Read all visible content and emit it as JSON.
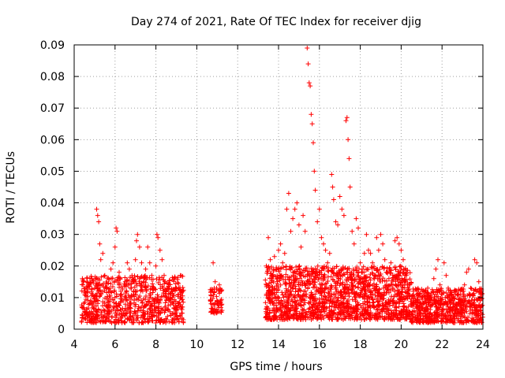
{
  "chart_data": {
    "type": "scatter",
    "title": "Day 274 of 2021, Rate Of TEC Index for receiver djig",
    "xlabel": "GPS time / hours",
    "ylabel": "ROTI / TECUs",
    "xlim": [
      4,
      24
    ],
    "ylim": [
      0,
      0.09
    ],
    "xticks": [
      "4",
      "6",
      "8",
      "10",
      "12",
      "14",
      "16",
      "18",
      "20",
      "22",
      "24"
    ],
    "yticks": [
      "0",
      "0.01",
      "0.02",
      "0.03",
      "0.04",
      "0.05",
      "0.06",
      "0.07",
      "0.08",
      "0.09"
    ],
    "grid": true,
    "marker": "plus",
    "marker_color": "#ff0000",
    "series": [
      {
        "name": "ROTI",
        "points": [
          [
            4.4,
            0.016
          ],
          [
            4.5,
            0.012
          ],
          [
            4.6,
            0.005
          ],
          [
            4.7,
            0.014
          ],
          [
            4.8,
            0.009
          ],
          [
            4.9,
            0.011
          ],
          [
            5.0,
            0.013
          ],
          [
            5.05,
            0.006
          ],
          [
            5.1,
            0.038
          ],
          [
            5.15,
            0.036
          ],
          [
            5.2,
            0.034
          ],
          [
            5.25,
            0.027
          ],
          [
            5.3,
            0.022
          ],
          [
            5.4,
            0.024
          ],
          [
            5.5,
            0.017
          ],
          [
            5.6,
            0.013
          ],
          [
            5.7,
            0.004
          ],
          [
            5.8,
            0.019
          ],
          [
            5.9,
            0.021
          ],
          [
            6.0,
            0.026
          ],
          [
            6.05,
            0.032
          ],
          [
            6.1,
            0.031
          ],
          [
            6.2,
            0.018
          ],
          [
            6.3,
            0.011
          ],
          [
            6.4,
            0.009
          ],
          [
            6.5,
            0.015
          ],
          [
            6.6,
            0.021
          ],
          [
            6.7,
            0.019
          ],
          [
            6.8,
            0.013
          ],
          [
            6.9,
            0.012
          ],
          [
            7.0,
            0.022
          ],
          [
            7.05,
            0.028
          ],
          [
            7.1,
            0.03
          ],
          [
            7.2,
            0.026
          ],
          [
            7.3,
            0.021
          ],
          [
            7.4,
            0.015
          ],
          [
            7.5,
            0.019
          ],
          [
            7.6,
            0.026
          ],
          [
            7.7,
            0.021
          ],
          [
            7.8,
            0.017
          ],
          [
            7.9,
            0.013
          ],
          [
            8.0,
            0.02
          ],
          [
            8.05,
            0.03
          ],
          [
            8.1,
            0.029
          ],
          [
            8.2,
            0.025
          ],
          [
            8.3,
            0.022
          ],
          [
            8.4,
            0.017
          ],
          [
            8.5,
            0.01
          ],
          [
            8.6,
            0.006
          ],
          [
            8.9,
            0.016
          ],
          [
            9.0,
            0.013
          ],
          [
            9.1,
            0.011
          ],
          [
            9.2,
            0.017
          ],
          [
            9.3,
            0.007
          ],
          [
            10.7,
            0.012
          ],
          [
            10.8,
            0.021
          ],
          [
            10.9,
            0.015
          ],
          [
            11.0,
            0.008
          ],
          [
            11.1,
            0.014
          ],
          [
            11.2,
            0.012
          ],
          [
            13.4,
            0.02
          ],
          [
            13.5,
            0.029
          ],
          [
            13.6,
            0.022
          ],
          [
            13.7,
            0.017
          ],
          [
            13.8,
            0.023
          ],
          [
            13.9,
            0.019
          ],
          [
            14.0,
            0.025
          ],
          [
            14.1,
            0.027
          ],
          [
            14.2,
            0.021
          ],
          [
            14.3,
            0.024
          ],
          [
            14.4,
            0.038
          ],
          [
            14.5,
            0.043
          ],
          [
            14.6,
            0.031
          ],
          [
            14.7,
            0.035
          ],
          [
            14.8,
            0.038
          ],
          [
            14.9,
            0.04
          ],
          [
            15.0,
            0.033
          ],
          [
            15.1,
            0.026
          ],
          [
            15.2,
            0.036
          ],
          [
            15.3,
            0.031
          ],
          [
            15.4,
            0.089
          ],
          [
            15.45,
            0.084
          ],
          [
            15.5,
            0.078
          ],
          [
            15.55,
            0.077
          ],
          [
            15.6,
            0.068
          ],
          [
            15.65,
            0.065
          ],
          [
            15.7,
            0.059
          ],
          [
            15.75,
            0.05
          ],
          [
            15.8,
            0.044
          ],
          [
            15.9,
            0.034
          ],
          [
            16.0,
            0.038
          ],
          [
            16.1,
            0.029
          ],
          [
            16.2,
            0.027
          ],
          [
            16.3,
            0.025
          ],
          [
            16.4,
            0.021
          ],
          [
            16.5,
            0.024
          ],
          [
            16.6,
            0.049
          ],
          [
            16.65,
            0.045
          ],
          [
            16.7,
            0.041
          ],
          [
            16.8,
            0.034
          ],
          [
            16.9,
            0.033
          ],
          [
            17.0,
            0.042
          ],
          [
            17.1,
            0.038
          ],
          [
            17.2,
            0.036
          ],
          [
            17.3,
            0.066
          ],
          [
            17.35,
            0.067
          ],
          [
            17.4,
            0.06
          ],
          [
            17.45,
            0.054
          ],
          [
            17.5,
            0.045
          ],
          [
            17.6,
            0.031
          ],
          [
            17.7,
            0.027
          ],
          [
            17.8,
            0.035
          ],
          [
            17.9,
            0.032
          ],
          [
            18.0,
            0.021
          ],
          [
            18.1,
            0.018
          ],
          [
            18.2,
            0.024
          ],
          [
            18.3,
            0.03
          ],
          [
            18.4,
            0.025
          ],
          [
            18.5,
            0.024
          ],
          [
            18.6,
            0.021
          ],
          [
            18.7,
            0.016
          ],
          [
            18.8,
            0.029
          ],
          [
            18.9,
            0.025
          ],
          [
            19.0,
            0.03
          ],
          [
            19.1,
            0.027
          ],
          [
            19.2,
            0.022
          ],
          [
            19.3,
            0.018
          ],
          [
            19.4,
            0.016
          ],
          [
            19.5,
            0.021
          ],
          [
            19.6,
            0.014
          ],
          [
            19.7,
            0.028
          ],
          [
            19.8,
            0.029
          ],
          [
            19.9,
            0.027
          ],
          [
            20.0,
            0.025
          ],
          [
            20.1,
            0.022
          ],
          [
            20.2,
            0.017
          ],
          [
            20.3,
            0.014
          ],
          [
            20.4,
            0.011
          ],
          [
            20.5,
            0.008
          ],
          [
            20.6,
            0.012
          ],
          [
            20.7,
            0.009
          ],
          [
            20.8,
            0.011
          ],
          [
            20.9,
            0.006
          ],
          [
            21.0,
            0.01
          ],
          [
            21.1,
            0.012
          ],
          [
            21.2,
            0.009
          ],
          [
            21.3,
            0.013
          ],
          [
            21.4,
            0.01
          ],
          [
            21.5,
            0.009
          ],
          [
            21.6,
            0.016
          ],
          [
            21.7,
            0.019
          ],
          [
            21.8,
            0.022
          ],
          [
            21.9,
            0.014
          ],
          [
            22.0,
            0.011
          ],
          [
            22.1,
            0.021
          ],
          [
            22.2,
            0.017
          ],
          [
            22.3,
            0.013
          ],
          [
            22.4,
            0.009
          ],
          [
            22.5,
            0.01
          ],
          [
            22.6,
            0.012
          ],
          [
            22.7,
            0.008
          ],
          [
            22.8,
            0.011
          ],
          [
            22.9,
            0.009
          ],
          [
            23.0,
            0.012
          ],
          [
            23.1,
            0.014
          ],
          [
            23.2,
            0.018
          ],
          [
            23.3,
            0.019
          ],
          [
            23.4,
            0.013
          ],
          [
            23.5,
            0.011
          ],
          [
            23.6,
            0.022
          ],
          [
            23.7,
            0.021
          ],
          [
            23.8,
            0.015
          ],
          [
            23.9,
            0.011
          ]
        ]
      }
    ],
    "clusters": [
      {
        "start": 4.35,
        "end": 9.35,
        "low": 0.002,
        "high": 0.017,
        "count": 780
      },
      {
        "start": 10.65,
        "end": 11.25,
        "low": 0.005,
        "high": 0.013,
        "count": 70
      },
      {
        "start": 13.35,
        "end": 20.5,
        "low": 0.003,
        "high": 0.02,
        "count": 1500
      },
      {
        "start": 20.5,
        "end": 24.0,
        "low": 0.002,
        "high": 0.013,
        "count": 620
      }
    ]
  }
}
